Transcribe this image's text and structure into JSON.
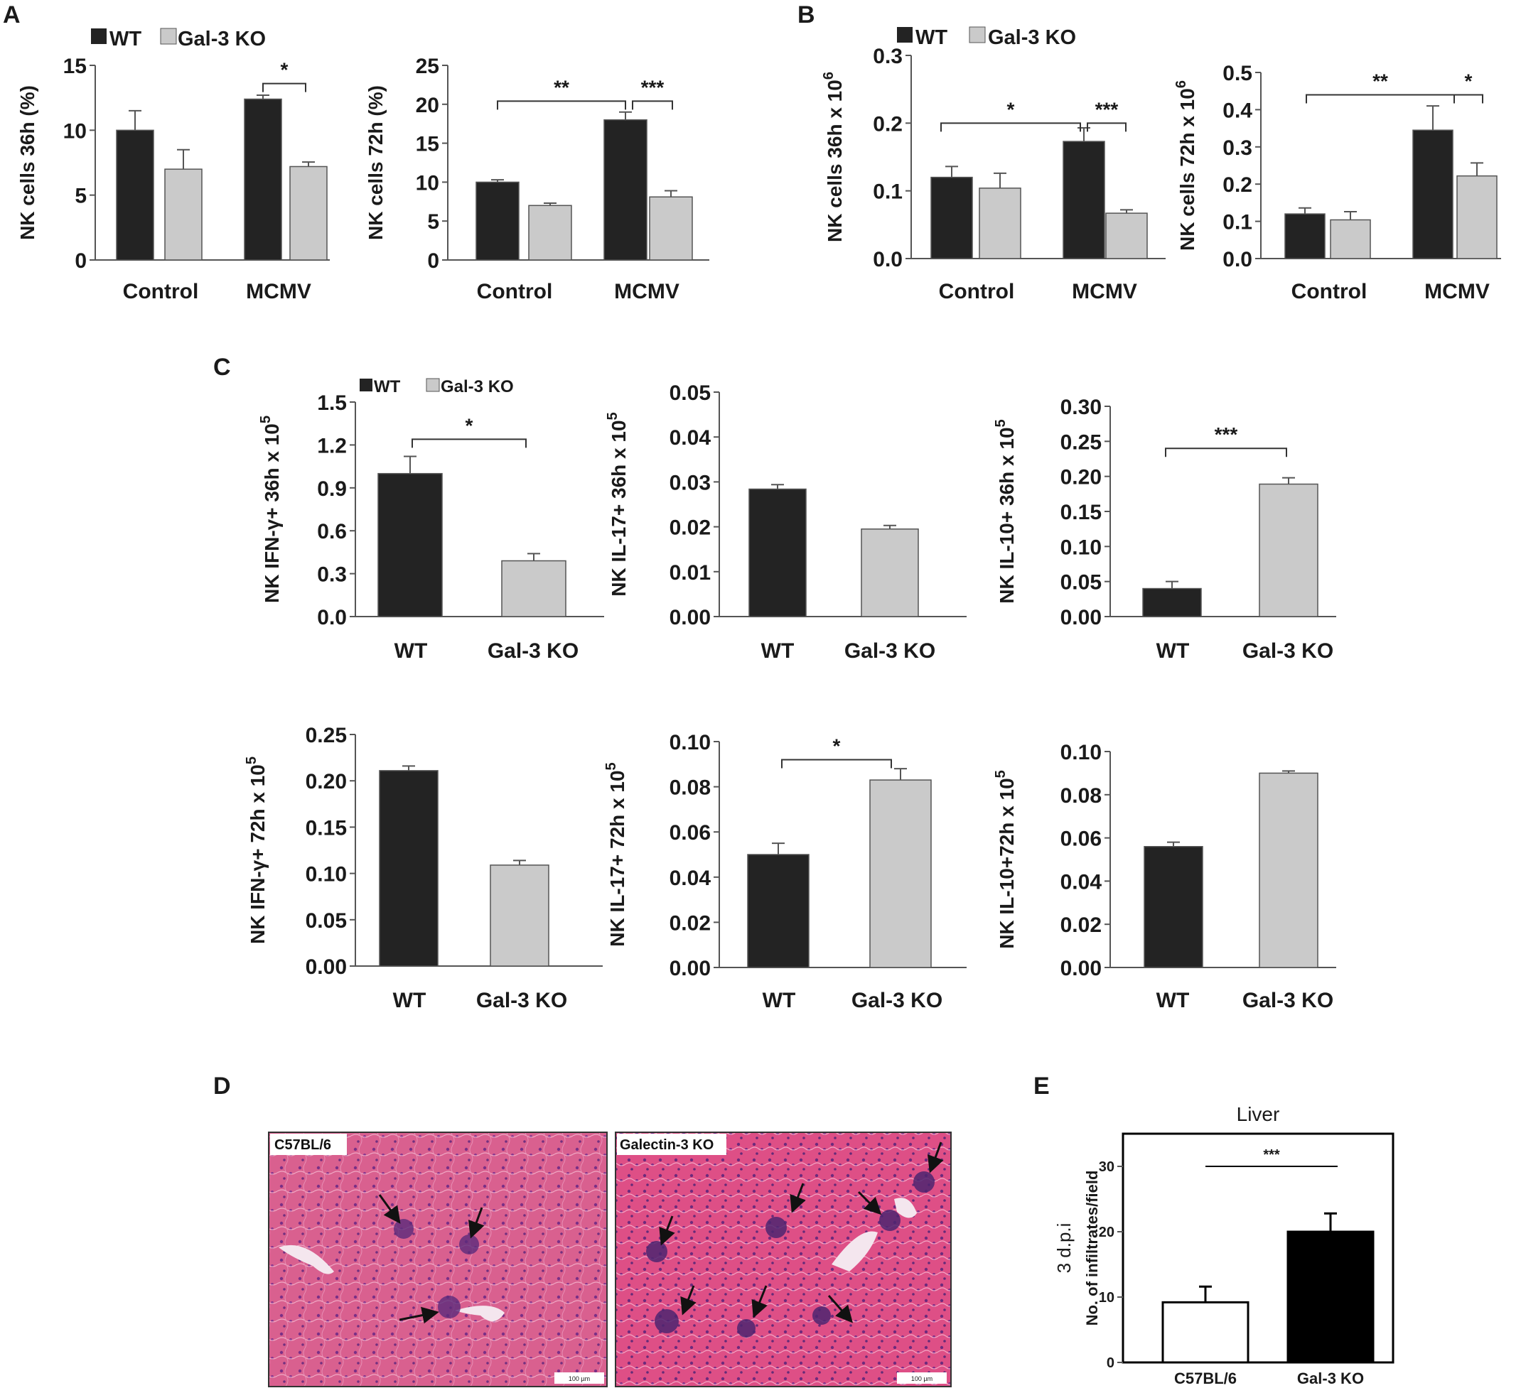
{
  "panels": {
    "A": "A",
    "B": "B",
    "C": "C",
    "D": "D",
    "E": "E"
  },
  "colors": {
    "wt": "#232323",
    "ko": "#cacaca",
    "axis": "#555555",
    "ko_e_fill": "#ffffff",
    "wt_e_fill": "#000000"
  },
  "legend": {
    "wt": "WT",
    "ko": "Gal-3 KO"
  },
  "chart_data": [
    {
      "id": "A1",
      "panel": "A",
      "type": "bar",
      "ylabel": "NK cells 36h (%)",
      "ylim": [
        0,
        15
      ],
      "yticks": [
        "0",
        "5",
        "10",
        "15"
      ],
      "categories": [
        "Control",
        "MCMV"
      ],
      "series": [
        {
          "name": "WT",
          "values": [
            10.0,
            12.4
          ],
          "errors": [
            1.5,
            0.3
          ]
        },
        {
          "name": "Gal-3 KO",
          "values": [
            7.0,
            7.2
          ],
          "errors": [
            1.5,
            0.35
          ]
        }
      ],
      "significance": [
        {
          "label": "*"
        }
      ]
    },
    {
      "id": "A2",
      "panel": "A",
      "type": "bar",
      "ylabel": "NK cells 72h (%)",
      "ylim": [
        0,
        25
      ],
      "yticks": [
        "0",
        "5",
        "10",
        "15",
        "20",
        "25"
      ],
      "categories": [
        "Control",
        "MCMV"
      ],
      "series": [
        {
          "name": "WT",
          "values": [
            10.0,
            18.0
          ],
          "errors": [
            0.3,
            1.0
          ]
        },
        {
          "name": "Gal-3 KO",
          "values": [
            7.0,
            8.1
          ],
          "errors": [
            0.3,
            0.8
          ]
        }
      ],
      "significance": [
        {
          "label": "**"
        },
        {
          "label": "***"
        }
      ]
    },
    {
      "id": "B1",
      "panel": "B",
      "type": "bar",
      "ylabel": "NK cells 36h x 10",
      "ylabel_sup": "6",
      "ylim": [
        0,
        0.3
      ],
      "yticks": [
        "0.0",
        "0.1",
        "0.2",
        "0.3"
      ],
      "categories": [
        "Control",
        "MCMV"
      ],
      "series": [
        {
          "name": "WT",
          "values": [
            0.12,
            0.173
          ],
          "errors": [
            0.016,
            0.02
          ]
        },
        {
          "name": "Gal-3 KO",
          "values": [
            0.104,
            0.067
          ],
          "errors": [
            0.022,
            0.005
          ]
        }
      ],
      "significance": [
        {
          "label": "*"
        },
        {
          "label": "***"
        }
      ]
    },
    {
      "id": "B2",
      "panel": "B",
      "type": "bar",
      "ylabel": "NK cells 72h x 10",
      "ylabel_sup": "6",
      "ylim": [
        0,
        0.5
      ],
      "yticks": [
        "0.0",
        "0.1",
        "0.2",
        "0.3",
        "0.4",
        "0.5"
      ],
      "categories": [
        "Control",
        "MCMV"
      ],
      "series": [
        {
          "name": "WT",
          "values": [
            0.12,
            0.345
          ],
          "errors": [
            0.016,
            0.065
          ]
        },
        {
          "name": "Gal-3 KO",
          "values": [
            0.104,
            0.222
          ],
          "errors": [
            0.022,
            0.035
          ]
        }
      ],
      "significance": [
        {
          "label": "**"
        },
        {
          "label": "*"
        }
      ]
    },
    {
      "id": "C1",
      "panel": "C",
      "type": "bar",
      "ylabel": "NK IFN-γ+ 36h x 10",
      "ylabel_sup": "5",
      "ylim": [
        0,
        1.5
      ],
      "yticks": [
        "0.0",
        "0.3",
        "0.6",
        "0.9",
        "1.2",
        "1.5"
      ],
      "categories": [
        "WT",
        "Gal-3 KO"
      ],
      "values": [
        1.0,
        0.39
      ],
      "errors": [
        0.12,
        0.05
      ],
      "significance": [
        {
          "label": "*"
        }
      ]
    },
    {
      "id": "C2",
      "panel": "C",
      "type": "bar",
      "ylabel": "NK IL-17+ 36h x 10",
      "ylabel_sup": "5",
      "ylim": [
        0,
        0.05
      ],
      "yticks": [
        "0.00",
        "0.01",
        "0.02",
        "0.03",
        "0.04",
        "0.05"
      ],
      "categories": [
        "WT",
        "Gal-3 KO"
      ],
      "values": [
        0.0284,
        0.0195
      ],
      "errors": [
        0.001,
        0.0008
      ],
      "significance": []
    },
    {
      "id": "C3",
      "panel": "C",
      "type": "bar",
      "ylabel": "NK IL-10+ 36h x 10",
      "ylabel_sup": "5",
      "ylim": [
        0,
        0.3
      ],
      "yticks": [
        "0.00",
        "0.05",
        "0.10",
        "0.15",
        "0.20",
        "0.25",
        "0.30"
      ],
      "categories": [
        "WT",
        "Gal-3 KO"
      ],
      "values": [
        0.04,
        0.189
      ],
      "errors": [
        0.01,
        0.009
      ],
      "significance": [
        {
          "label": "***"
        }
      ]
    },
    {
      "id": "C4",
      "panel": "C",
      "type": "bar",
      "ylabel": "NK IFN-γ+ 72h x 10",
      "ylabel_sup": "5",
      "ylim": [
        0,
        0.25
      ],
      "yticks": [
        "0.00",
        "0.05",
        "0.10",
        "0.15",
        "0.20",
        "0.25"
      ],
      "categories": [
        "WT",
        "Gal-3 KO"
      ],
      "values": [
        0.211,
        0.109
      ],
      "errors": [
        0.005,
        0.005
      ],
      "significance": []
    },
    {
      "id": "C5",
      "panel": "C",
      "type": "bar",
      "ylabel": "NK IL-17+ 72h x 10",
      "ylabel_sup": "5",
      "ylim": [
        0,
        0.1
      ],
      "yticks": [
        "0.00",
        "0.02",
        "0.04",
        "0.06",
        "0.08",
        "0.10"
      ],
      "categories": [
        "WT",
        "Gal-3 KO"
      ],
      "values": [
        0.05,
        0.083
      ],
      "errors": [
        0.005,
        0.005
      ],
      "significance": [
        {
          "label": "*"
        }
      ]
    },
    {
      "id": "C6",
      "panel": "C",
      "type": "bar",
      "ylabel": "NK IL-10+72h x 10",
      "ylabel_sup": "5",
      "ylim": [
        0,
        0.1
      ],
      "yticks": [
        "0.00",
        "0.02",
        "0.04",
        "0.06",
        "0.08",
        "0.10"
      ],
      "categories": [
        "WT",
        "Gal-3 KO"
      ],
      "values": [
        0.056,
        0.09
      ],
      "errors": [
        0.002,
        0.001
      ],
      "significance": []
    },
    {
      "id": "E",
      "panel": "E",
      "type": "bar",
      "title": "Liver",
      "ylabel": "No. of infiltrates/field",
      "side_label": "3 d.p.i",
      "ylim": [
        0,
        35
      ],
      "yticks": [
        "0",
        "10",
        "20",
        "30"
      ],
      "categories": [
        "C57BL/6",
        "Gal-3 KO"
      ],
      "values": [
        9.2,
        20.0
      ],
      "errors": [
        2.4,
        2.8
      ],
      "significance": [
        {
          "label": "***"
        }
      ]
    }
  ],
  "micrographs": [
    {
      "label": "C57BL/6",
      "scale_text": "100 µm"
    },
    {
      "label": "Galectin-3 KO",
      "scale_text": "100 µm"
    }
  ]
}
